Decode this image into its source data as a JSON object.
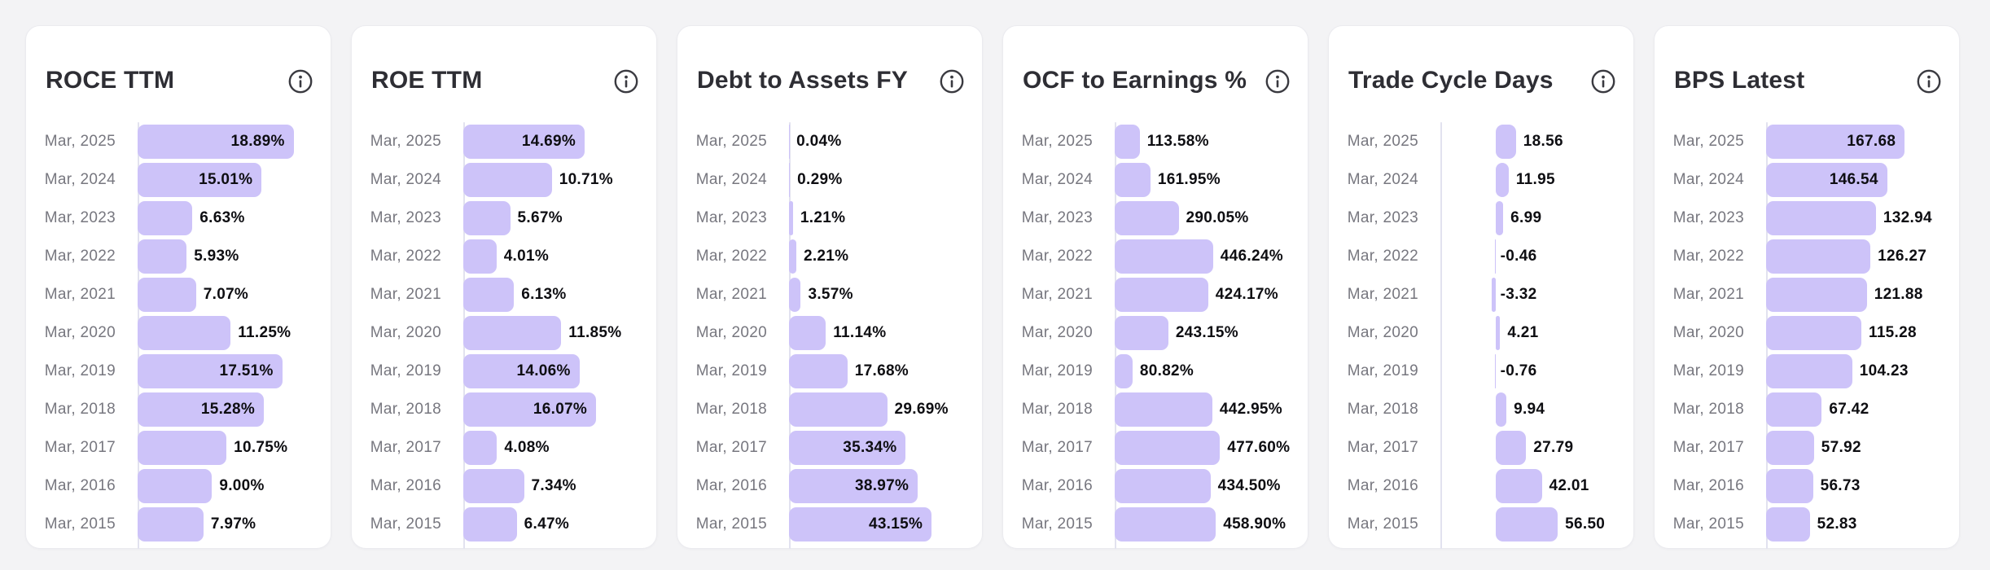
{
  "page": {
    "background": "#f3f3f5",
    "card_background": "#ffffff",
    "card_border_color": "#ebebef"
  },
  "icons": {
    "card_header_icon": "info-icon"
  },
  "chart_data": [
    {
      "type": "bar",
      "orientation": "horizontal",
      "title": "ROCE TTM",
      "unit": "%",
      "bar_color": "#cdc3f9",
      "axis_color": "#e2e2ef",
      "grid": false,
      "legend": false,
      "xlim": [
        0,
        20
      ],
      "categories": [
        "Mar, 2025",
        "Mar, 2024",
        "Mar, 2023",
        "Mar, 2022",
        "Mar, 2021",
        "Mar, 2020",
        "Mar, 2019",
        "Mar, 2018",
        "Mar, 2017",
        "Mar, 2016",
        "Mar, 2015"
      ],
      "values": [
        18.89,
        15.01,
        6.63,
        5.93,
        7.07,
        11.25,
        17.51,
        15.28,
        10.75,
        9.0,
        7.97
      ],
      "value_labels": [
        "18.89%",
        "15.01%",
        "6.63%",
        "5.93%",
        "7.07%",
        "11.25%",
        "17.51%",
        "15.28%",
        "10.75%",
        "9.00%",
        "7.97%"
      ]
    },
    {
      "type": "bar",
      "orientation": "horizontal",
      "title": "ROE TTM",
      "unit": "%",
      "bar_color": "#cdc3f9",
      "axis_color": "#e2e2ef",
      "grid": false,
      "legend": false,
      "xlim": [
        0,
        20
      ],
      "categories": [
        "Mar, 2025",
        "Mar, 2024",
        "Mar, 2023",
        "Mar, 2022",
        "Mar, 2021",
        "Mar, 2020",
        "Mar, 2019",
        "Mar, 2018",
        "Mar, 2017",
        "Mar, 2016",
        "Mar, 2015"
      ],
      "values": [
        14.69,
        10.71,
        5.67,
        4.01,
        6.13,
        11.85,
        14.06,
        16.07,
        4.08,
        7.34,
        6.47
      ],
      "value_labels": [
        "14.69%",
        "10.71%",
        "5.67%",
        "4.01%",
        "6.13%",
        "11.85%",
        "14.06%",
        "16.07%",
        "4.08%",
        "7.34%",
        "6.47%"
      ]
    },
    {
      "type": "bar",
      "orientation": "horizontal",
      "title": "Debt to Assets FY",
      "unit": "%",
      "bar_color": "#cdc3f9",
      "axis_color": "#e2e2ef",
      "grid": false,
      "legend": false,
      "xlim": [
        0,
        50
      ],
      "categories": [
        "Mar, 2025",
        "Mar, 2024",
        "Mar, 2023",
        "Mar, 2022",
        "Mar, 2021",
        "Mar, 2020",
        "Mar, 2019",
        "Mar, 2018",
        "Mar, 2017",
        "Mar, 2016",
        "Mar, 2015"
      ],
      "values": [
        0.04,
        0.29,
        1.21,
        2.21,
        3.57,
        11.14,
        17.68,
        29.69,
        35.34,
        38.97,
        43.15
      ],
      "value_labels": [
        "0.04%",
        "0.29%",
        "1.21%",
        "2.21%",
        "3.57%",
        "11.14%",
        "17.68%",
        "29.69%",
        "35.34%",
        "38.97%",
        "43.15%"
      ]
    },
    {
      "type": "bar",
      "orientation": "horizontal",
      "title": "OCF to Earnings %",
      "unit": "%",
      "bar_color": "#cdc3f9",
      "axis_color": "#e2e2ef",
      "grid": false,
      "legend": false,
      "xlim": [
        0,
        750
      ],
      "categories": [
        "Mar, 2025",
        "Mar, 2024",
        "Mar, 2023",
        "Mar, 2022",
        "Mar, 2021",
        "Mar, 2020",
        "Mar, 2019",
        "Mar, 2018",
        "Mar, 2017",
        "Mar, 2016",
        "Mar, 2015"
      ],
      "values": [
        113.58,
        161.95,
        290.05,
        446.24,
        424.17,
        243.15,
        80.82,
        442.95,
        477.6,
        434.5,
        458.9
      ],
      "value_labels": [
        "113.58%",
        "161.95%",
        "290.05%",
        "446.24%",
        "424.17%",
        "243.15%",
        "80.82%",
        "442.95%",
        "477.60%",
        "434.50%",
        "458.90%"
      ]
    },
    {
      "type": "bar",
      "orientation": "horizontal",
      "title": "Trade Cycle Days",
      "unit": "days",
      "bar_color": "#cdc3f9",
      "axis_color": "#e2e2ef",
      "grid": false,
      "legend": false,
      "xlim": [
        -50,
        100
      ],
      "categories": [
        "Mar, 2025",
        "Mar, 2024",
        "Mar, 2023",
        "Mar, 2022",
        "Mar, 2021",
        "Mar, 2020",
        "Mar, 2019",
        "Mar, 2018",
        "Mar, 2017",
        "Mar, 2016",
        "Mar, 2015"
      ],
      "values": [
        18.56,
        11.95,
        6.99,
        -0.46,
        -3.32,
        4.21,
        -0.76,
        9.94,
        27.79,
        42.01,
        56.5
      ],
      "value_labels": [
        "18.56",
        "11.95",
        "6.99",
        "-0.46",
        "-3.32",
        "4.21",
        "-0.76",
        "9.94",
        "27.79",
        "42.01",
        "56.50"
      ]
    },
    {
      "type": "bar",
      "orientation": "horizontal",
      "title": "BPS Latest",
      "unit": "",
      "bar_color": "#cdc3f9",
      "axis_color": "#e2e2ef",
      "grid": false,
      "legend": false,
      "xlim": [
        0,
        200
      ],
      "categories": [
        "Mar, 2025",
        "Mar, 2024",
        "Mar, 2023",
        "Mar, 2022",
        "Mar, 2021",
        "Mar, 2020",
        "Mar, 2019",
        "Mar, 2018",
        "Mar, 2017",
        "Mar, 2016",
        "Mar, 2015"
      ],
      "values": [
        167.68,
        146.54,
        132.94,
        126.27,
        121.88,
        115.28,
        104.23,
        67.42,
        57.92,
        56.73,
        52.83
      ],
      "value_labels": [
        "167.68",
        "146.54",
        "132.94",
        "126.27",
        "121.88",
        "115.28",
        "104.23",
        "67.42",
        "57.92",
        "56.73",
        "52.83"
      ]
    }
  ]
}
